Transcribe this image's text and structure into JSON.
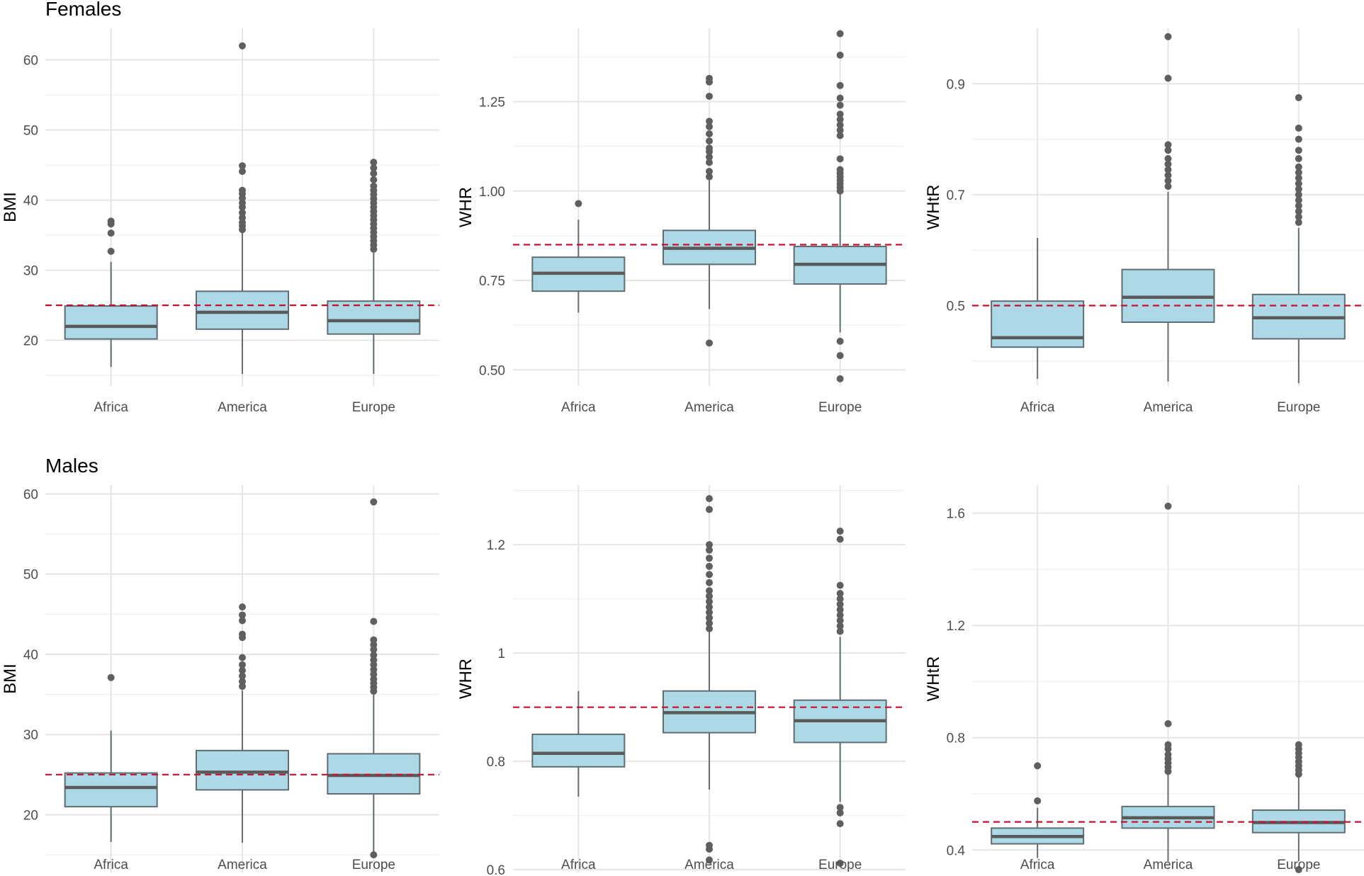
{
  "colors": {
    "box_fill": "#add8e6",
    "box_stroke": "#5e6e74",
    "median": "#5a5a5a",
    "outlier": "#5f5f5f",
    "reference_line": "#c8102e",
    "grid_major": "#e6e6e6",
    "grid_minor": "#f2f2f2"
  },
  "rows": [
    {
      "title": "Females"
    },
    {
      "title": "Males"
    }
  ],
  "chart_data": [
    {
      "type": "boxplot",
      "row": "Females",
      "ylabel": "BMI",
      "categories": [
        "Africa",
        "America",
        "Europe"
      ],
      "ylim": [
        13.5,
        64.5
      ],
      "yticks": [
        20,
        30,
        40,
        50,
        60
      ],
      "reference_line": 25,
      "boxes": [
        {
          "q1": 20.2,
          "median": 22.0,
          "q3": 24.9,
          "whisker_low": 16.2,
          "whisker_high": 31.2,
          "outliers": [
            32.7,
            35.3,
            36.6,
            37.0
          ]
        },
        {
          "q1": 21.6,
          "median": 24.0,
          "q3": 27.0,
          "whisker_low": 15.2,
          "whisker_high": 35.3,
          "outliers": [
            35.8,
            36.3,
            36.8,
            37.5,
            38.2,
            39.0,
            39.6,
            40.3,
            40.9,
            41.4,
            44.1,
            44.9,
            62.0
          ]
        },
        {
          "q1": 20.9,
          "median": 22.8,
          "q3": 25.6,
          "whisker_low": 15.2,
          "whisker_high": 32.5,
          "outliers": [
            33.0,
            33.6,
            34.2,
            34.8,
            35.4,
            36.0,
            36.6,
            37.2,
            37.8,
            38.4,
            39.0,
            39.6,
            40.2,
            40.8,
            41.4,
            42.0,
            42.9,
            43.8,
            44.6,
            45.4
          ]
        }
      ]
    },
    {
      "type": "boxplot",
      "row": "Females",
      "ylabel": "WHR",
      "categories": [
        "Africa",
        "America",
        "Europe"
      ],
      "ylim": [
        0.455,
        1.455
      ],
      "yticks": [
        0.5,
        0.75,
        1.0,
        1.25
      ],
      "ytick_labels": [
        "0.50",
        "0.75",
        "1.00",
        "1.25"
      ],
      "reference_line": 0.85,
      "boxes": [
        {
          "q1": 0.72,
          "median": 0.77,
          "q3": 0.815,
          "whisker_low": 0.66,
          "whisker_high": 0.92,
          "outliers": [
            0.965
          ]
        },
        {
          "q1": 0.795,
          "median": 0.84,
          "q3": 0.89,
          "whisker_low": 0.67,
          "whisker_high": 1.03,
          "outliers": [
            0.575,
            1.04,
            1.055,
            1.08,
            1.095,
            1.11,
            1.12,
            1.14,
            1.16,
            1.18,
            1.195,
            1.265,
            1.305,
            1.315
          ]
        },
        {
          "q1": 0.74,
          "median": 0.795,
          "q3": 0.845,
          "whisker_low": 0.605,
          "whisker_high": 0.995,
          "outliers": [
            0.475,
            0.54,
            0.58,
            1.0,
            1.01,
            1.02,
            1.03,
            1.04,
            1.05,
            1.06,
            1.09,
            1.155,
            1.17,
            1.185,
            1.2,
            1.215,
            1.24,
            1.26,
            1.295,
            1.38,
            1.44
          ]
        }
      ]
    },
    {
      "type": "boxplot",
      "row": "Females",
      "ylabel": "WHtR",
      "categories": [
        "Africa",
        "America",
        "Europe"
      ],
      "ylim": [
        0.355,
        1.0
      ],
      "yticks": [
        0.5,
        0.7,
        0.9
      ],
      "reference_line": 0.5,
      "boxes": [
        {
          "q1": 0.425,
          "median": 0.442,
          "q3": 0.508,
          "whisker_low": 0.368,
          "whisker_high": 0.622,
          "outliers": []
        },
        {
          "q1": 0.47,
          "median": 0.515,
          "q3": 0.565,
          "whisker_low": 0.363,
          "whisker_high": 0.705,
          "outliers": [
            0.715,
            0.725,
            0.735,
            0.745,
            0.755,
            0.765,
            0.78,
            0.79,
            0.91,
            0.985
          ]
        },
        {
          "q1": 0.44,
          "median": 0.478,
          "q3": 0.52,
          "whisker_low": 0.36,
          "whisker_high": 0.64,
          "outliers": [
            0.65,
            0.66,
            0.67,
            0.68,
            0.69,
            0.7,
            0.71,
            0.72,
            0.73,
            0.74,
            0.75,
            0.765,
            0.78,
            0.8,
            0.82,
            0.875
          ]
        }
      ]
    },
    {
      "type": "boxplot",
      "row": "Males",
      "ylabel": "BMI",
      "categories": [
        "Africa",
        "America",
        "Europe"
      ],
      "ylim": [
        12.8,
        61.1
      ],
      "yticks": [
        20,
        30,
        40,
        50,
        60
      ],
      "reference_line": 25,
      "boxes": [
        {
          "q1": 21.0,
          "median": 23.4,
          "q3": 25.2,
          "whisker_low": 16.6,
          "whisker_high": 30.5,
          "outliers": [
            37.1
          ]
        },
        {
          "q1": 23.1,
          "median": 25.3,
          "q3": 28.0,
          "whisker_low": 16.5,
          "whisker_high": 35.5,
          "outliers": [
            36.0,
            36.6,
            37.3,
            38.0,
            38.7,
            39.6,
            42.1,
            42.5,
            44.2,
            44.9,
            45.9
          ]
        },
        {
          "q1": 22.6,
          "median": 24.9,
          "q3": 27.6,
          "whisker_low": 15.0,
          "whisker_high": 35.0,
          "outliers": [
            15.0,
            35.4,
            35.9,
            36.4,
            36.9,
            37.5,
            38.1,
            38.7,
            39.3,
            39.9,
            40.6,
            41.2,
            41.8,
            44.1,
            59.0
          ]
        }
      ]
    },
    {
      "type": "boxplot",
      "row": "Males",
      "ylabel": "WHR",
      "categories": [
        "Africa",
        "America",
        "Europe"
      ],
      "ylim": [
        0.595,
        1.31
      ],
      "yticks": [
        0.6,
        0.8,
        1.0,
        1.2
      ],
      "reference_line": 0.9,
      "boxes": [
        {
          "q1": 0.79,
          "median": 0.815,
          "q3": 0.85,
          "whisker_low": 0.735,
          "whisker_high": 0.93,
          "outliers": []
        },
        {
          "q1": 0.853,
          "median": 0.89,
          "q3": 0.93,
          "whisker_low": 0.748,
          "whisker_high": 1.04,
          "outliers": [
            0.618,
            0.638,
            0.645,
            1.045,
            1.055,
            1.065,
            1.075,
            1.085,
            1.095,
            1.105,
            1.115,
            1.13,
            1.145,
            1.16,
            1.175,
            1.19,
            1.2,
            1.265,
            1.285
          ]
        },
        {
          "q1": 0.835,
          "median": 0.875,
          "q3": 0.913,
          "whisker_low": 0.725,
          "whisker_high": 1.03,
          "outliers": [
            0.612,
            0.685,
            0.705,
            0.715,
            1.04,
            1.05,
            1.06,
            1.07,
            1.08,
            1.09,
            1.1,
            1.11,
            1.125,
            1.21,
            1.225
          ]
        }
      ]
    },
    {
      "type": "boxplot",
      "row": "Males",
      "ylabel": "WHtR",
      "categories": [
        "Africa",
        "America",
        "Europe"
      ],
      "ylim": [
        0.32,
        1.7
      ],
      "yticks": [
        0.4,
        0.8,
        1.2,
        1.6
      ],
      "reference_line": 0.5,
      "boxes": [
        {
          "q1": 0.422,
          "median": 0.448,
          "q3": 0.478,
          "whisker_low": 0.372,
          "whisker_high": 0.55,
          "outliers": [
            0.575,
            0.7
          ]
        },
        {
          "q1": 0.478,
          "median": 0.515,
          "q3": 0.555,
          "whisker_low": 0.36,
          "whisker_high": 0.67,
          "outliers": [
            0.68,
            0.695,
            0.71,
            0.725,
            0.74,
            0.76,
            0.775,
            0.85,
            1.625
          ]
        },
        {
          "q1": 0.462,
          "median": 0.498,
          "q3": 0.542,
          "whisker_low": 0.36,
          "whisker_high": 0.66,
          "outliers": [
            0.33,
            0.67,
            0.685,
            0.7,
            0.715,
            0.73,
            0.745,
            0.76,
            0.775
          ]
        }
      ]
    }
  ]
}
